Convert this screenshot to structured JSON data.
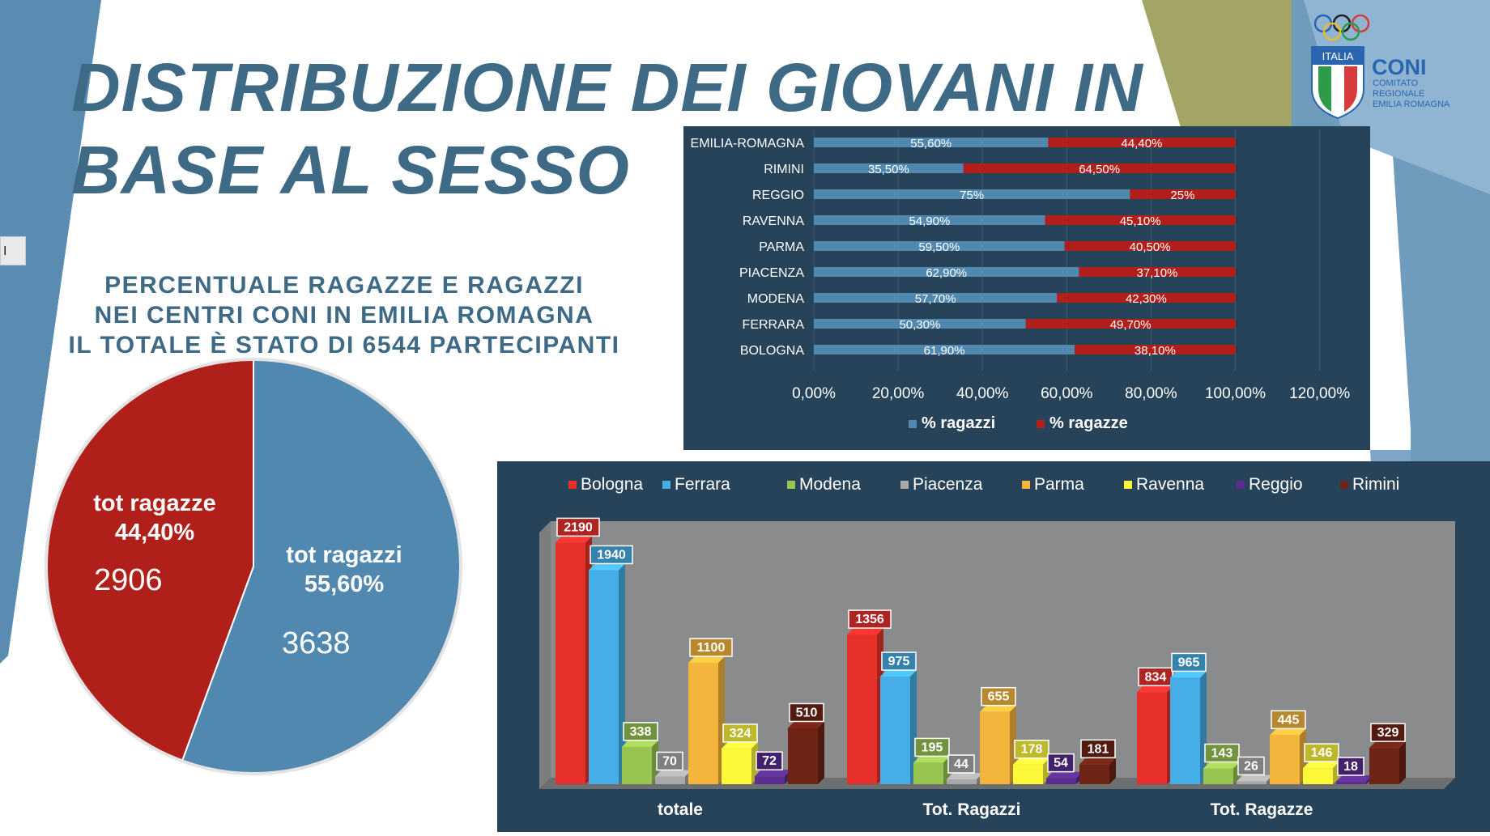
{
  "title": {
    "line1": "DISTRIBUZIONE DEI GIOVANI IN",
    "line2": "BASE AL SESSO"
  },
  "subtitle": {
    "line1": "PERCENTUALE RAGAZZE E RAGAZZI",
    "line2": "NEI CENTRI CONI IN EMILIA ROMAGNA",
    "line3": "IL TOTALE È STATO DI 6544 PARTECIPANTI"
  },
  "side_tab": {
    "label": "I"
  },
  "logo": {
    "italia": "ITALIA",
    "coni": "CONI",
    "line1": "COMITATO",
    "line2": "REGIONALE",
    "line3": "EMILIA ROMAGNA"
  },
  "colors": {
    "boys": "#5188b0",
    "girls": "#b01f19",
    "title": "#3f6a86",
    "panel": "#26435a"
  },
  "chart_data": [
    {
      "type": "pie",
      "slices": [
        {
          "label": "tot ragazze",
          "percent_label": "44,40%",
          "value": 2906,
          "percent": 44.4
        },
        {
          "label": "tot ragazzi",
          "percent_label": "55,60%",
          "value": 3638,
          "percent": 55.6
        }
      ]
    },
    {
      "type": "bar",
      "orientation": "horizontal",
      "stacked": true,
      "categories": [
        "EMILIA-ROMAGNA",
        "RIMINI",
        "REGGIO",
        "RAVENNA",
        "PARMA",
        "PIACENZA",
        "MODENA",
        "FERRARA",
        "BOLOGNA"
      ],
      "series": [
        {
          "name": "% ragazzi",
          "values": [
            55.6,
            35.5,
            75,
            54.9,
            59.5,
            62.9,
            57.7,
            50.3,
            61.9
          ],
          "labels": [
            "55,60%",
            "35,50%",
            "75%",
            "54,90%",
            "59,50%",
            "62,90%",
            "57,70%",
            "50,30%",
            "61,90%"
          ]
        },
        {
          "name": "% ragazze",
          "values": [
            44.4,
            64.5,
            25,
            45.1,
            40.5,
            37.1,
            42.3,
            49.7,
            38.1
          ],
          "labels": [
            "44,40%",
            "64,50%",
            "25%",
            "45,10%",
            "40,50%",
            "37,10%",
            "42,30%",
            "49,70%",
            "38,10%"
          ]
        }
      ],
      "xlim": [
        0,
        120
      ],
      "xticks": [
        "0,00%",
        "20,00%",
        "40,00%",
        "60,00%",
        "80,00%",
        "100,00%",
        "120,00%"
      ],
      "grid": true,
      "legend": "bottom"
    },
    {
      "type": "bar",
      "style": "3d-clustered",
      "categories": [
        "totale",
        "Tot. Ragazzi",
        "Tot. Ragazze"
      ],
      "series": [
        {
          "name": "Bologna",
          "color": "#e8302a",
          "values": [
            2190,
            1356,
            834
          ]
        },
        {
          "name": "Ferrara",
          "color": "#46aee6",
          "values": [
            1940,
            975,
            965
          ]
        },
        {
          "name": "Modena",
          "color": "#98c452",
          "values": [
            338,
            195,
            143
          ]
        },
        {
          "name": "Piacenza",
          "color": "#a9a9a9",
          "values": [
            70,
            44,
            26
          ]
        },
        {
          "name": "Parma",
          "color": "#f4b53c",
          "values": [
            1100,
            655,
            445
          ]
        },
        {
          "name": "Ravenna",
          "color": "#fdf73a",
          "values": [
            324,
            178,
            146
          ]
        },
        {
          "name": "Reggio",
          "color": "#5a2d8e",
          "values": [
            72,
            54,
            18
          ]
        },
        {
          "name": "Rimini",
          "color": "#6e2414",
          "values": [
            510,
            181,
            329
          ]
        }
      ],
      "ylim": [
        0,
        2200
      ],
      "legend": "top"
    }
  ]
}
